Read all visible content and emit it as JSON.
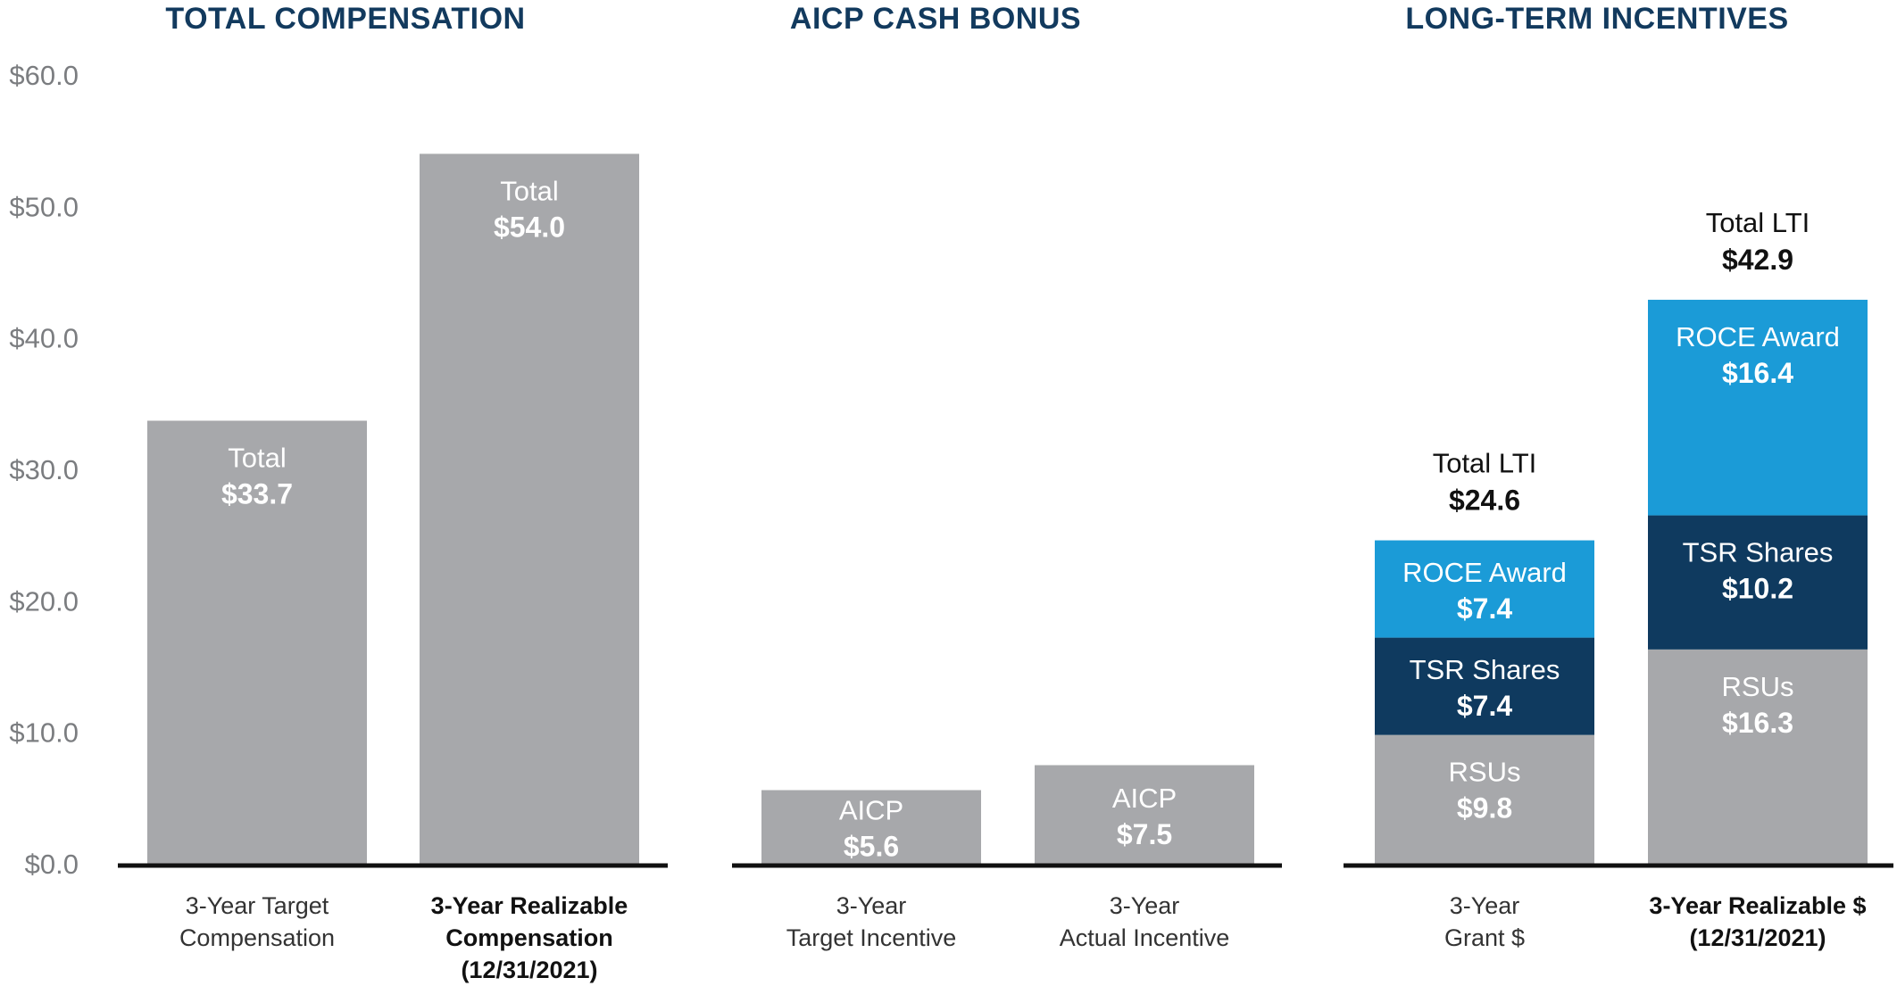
{
  "chart_data": {
    "type": "bar",
    "ylim": [
      0,
      60
    ],
    "yticks": [
      "$0.0",
      "$10.0",
      "$20.0",
      "$30.0",
      "$40.0",
      "$50.0",
      "$60.0"
    ],
    "ytick_values": [
      0,
      10,
      20,
      30,
      40,
      50,
      60
    ],
    "colors": {
      "gray": "#a7a8ab",
      "navy": "#0f3a5f",
      "blue": "#1b9bd7",
      "axis": "#111111"
    },
    "panels": [
      {
        "title": "TOTAL COMPENSATION",
        "bars": [
          {
            "category": [
              "3-Year Target",
              "Compensation"
            ],
            "category_bold": false,
            "segments": [
              {
                "name": "Total",
                "value": 33.7,
                "display": "$33.7",
                "color": "gray"
              }
            ]
          },
          {
            "category": [
              "3-Year Realizable",
              "Compensation",
              "(12/31/2021)"
            ],
            "category_bold": true,
            "segments": [
              {
                "name": "Total",
                "value": 54.0,
                "display": "$54.0",
                "color": "gray"
              }
            ]
          }
        ]
      },
      {
        "title": "AICP CASH BONUS",
        "bars": [
          {
            "category": [
              "3-Year",
              "Target Incentive"
            ],
            "category_bold": false,
            "segments": [
              {
                "name": "AICP",
                "value": 5.6,
                "display": "$5.6",
                "color": "gray"
              }
            ]
          },
          {
            "category": [
              "3-Year",
              "Actual Incentive"
            ],
            "category_bold": false,
            "segments": [
              {
                "name": "AICP",
                "value": 7.5,
                "display": "$7.5",
                "color": "gray"
              }
            ]
          }
        ]
      },
      {
        "title": "LONG-TERM INCENTIVES",
        "bars": [
          {
            "category": [
              "3-Year",
              "Grant $"
            ],
            "category_bold": false,
            "total_label": "Total LTI",
            "total_display": "$24.6",
            "segments": [
              {
                "name": "RSUs",
                "value": 9.8,
                "display": "$9.8",
                "color": "gray"
              },
              {
                "name": "TSR Shares",
                "value": 7.4,
                "display": "$7.4",
                "color": "navy"
              },
              {
                "name": "ROCE Award",
                "value": 7.4,
                "display": "$7.4",
                "color": "blue"
              }
            ]
          },
          {
            "category": [
              "3-Year Realizable $",
              "(12/31/2021)"
            ],
            "category_bold": true,
            "total_label": "Total LTI",
            "total_display": "$42.9",
            "segments": [
              {
                "name": "RSUs",
                "value": 16.3,
                "display": "$16.3",
                "color": "gray"
              },
              {
                "name": "TSR Shares",
                "value": 10.2,
                "display": "$10.2",
                "color": "navy"
              },
              {
                "name": "ROCE Award",
                "value": 16.4,
                "display": "$16.4",
                "color": "blue"
              }
            ]
          }
        ]
      }
    ]
  }
}
